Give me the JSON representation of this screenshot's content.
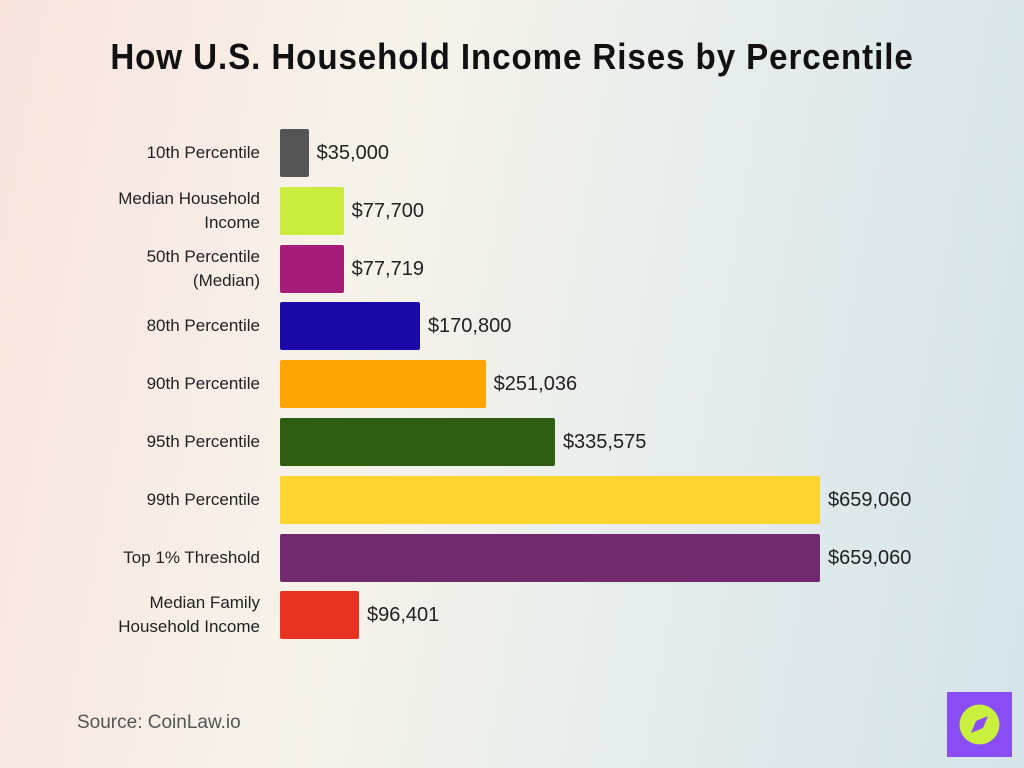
{
  "chart_data": {
    "type": "bar",
    "orientation": "horizontal",
    "title": "How U.S. Household Income Rises by Percentile",
    "categories": [
      "10th Percentile",
      "Median Household Income",
      "50th Percentile (Median)",
      "80th Percentile",
      "90th Percentile",
      "95th Percentile",
      "99th Percentile",
      "Top 1% Threshold",
      "Median Family Household Income"
    ],
    "values": [
      35000,
      77700,
      77719,
      170800,
      251036,
      335575,
      659060,
      659060,
      96401
    ],
    "value_labels": [
      "$35,000",
      "$77,700",
      "$77,719",
      "$170,800",
      "$251,036",
      "$335,575",
      "$659,060",
      "$659,060",
      "$96,401"
    ],
    "colors": [
      "#555555",
      "#c9ec3e",
      "#a51d79",
      "#1a0aa8",
      "#fca503",
      "#2f5e12",
      "#fdd430",
      "#722a6f",
      "#e83222"
    ],
    "source": "Source: CoinLaw.io"
  }
}
